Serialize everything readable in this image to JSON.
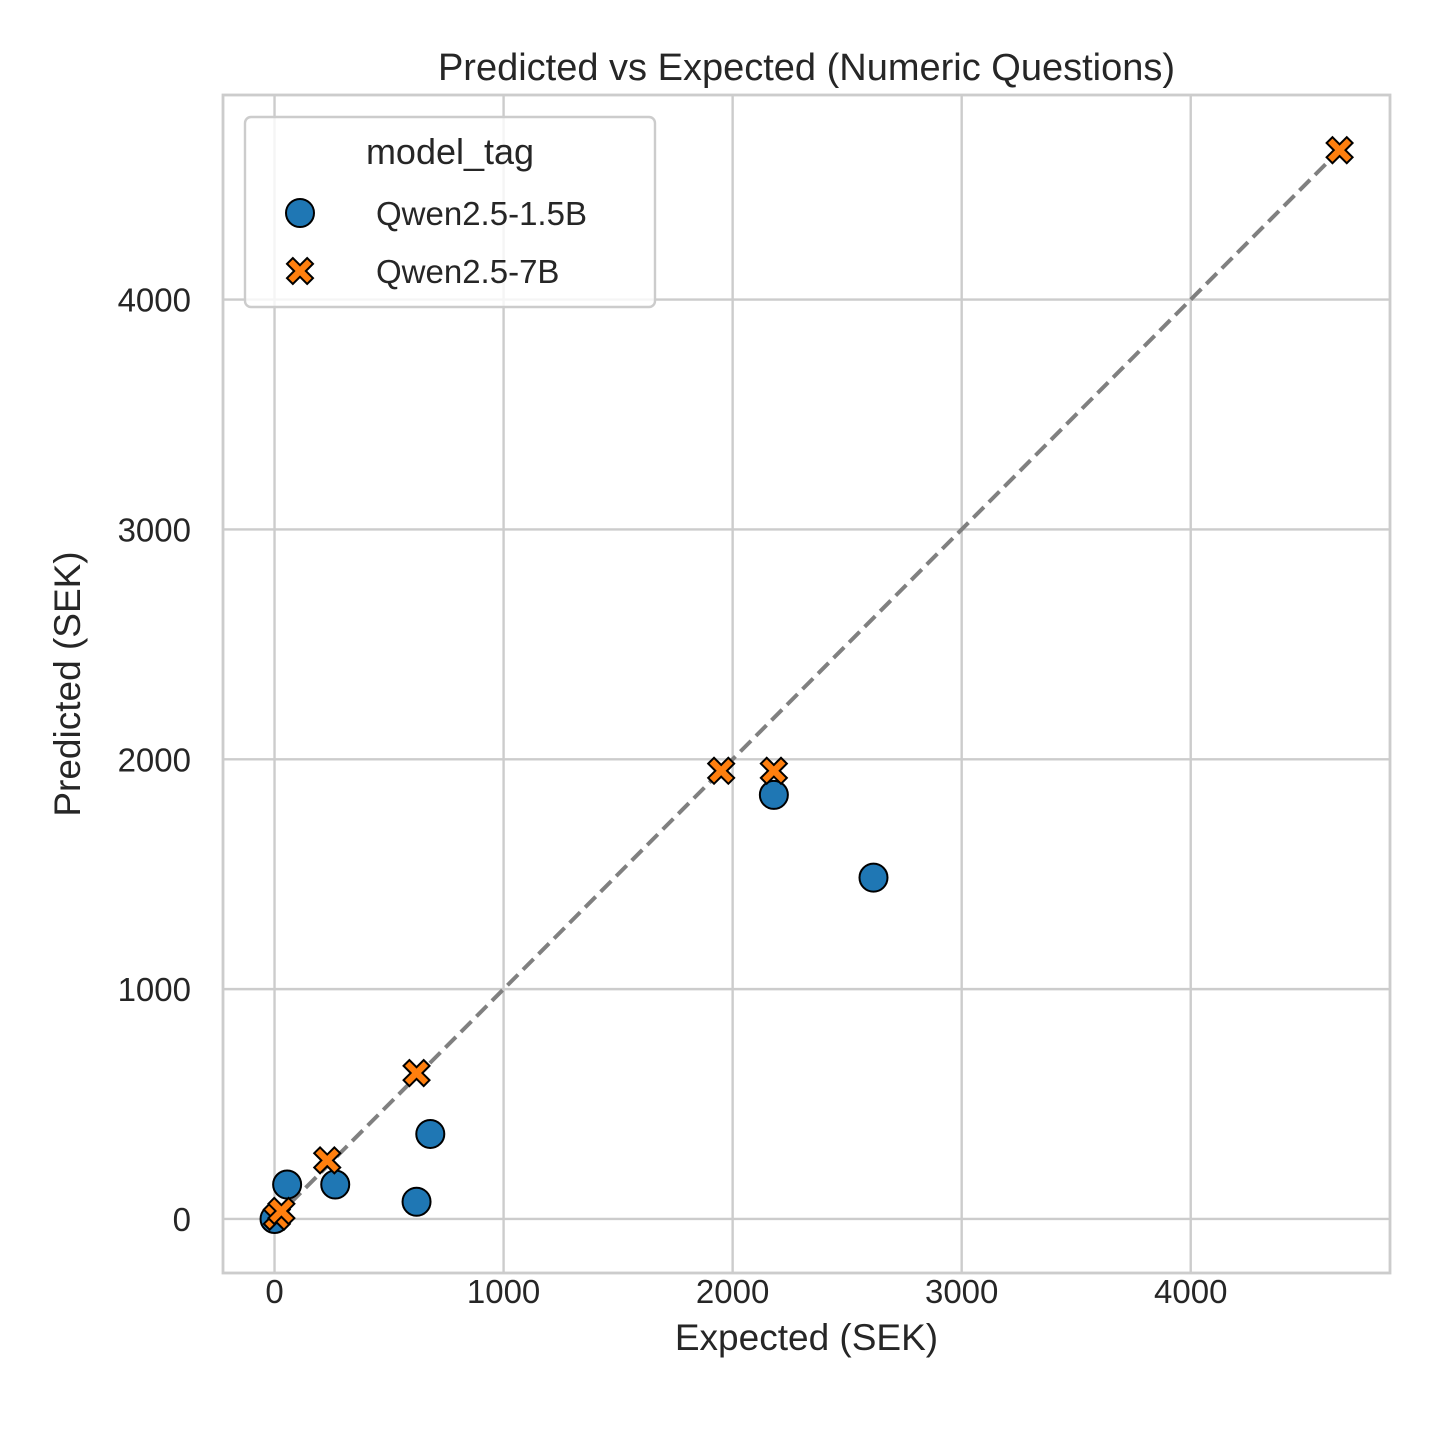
{
  "chart_data": {
    "type": "scatter",
    "title": "Predicted vs Expected (Numeric Questions)",
    "xlabel": "Expected (SEK)",
    "ylabel": "Predicted (SEK)",
    "xlim": [
      -225,
      4870
    ],
    "ylim": [
      -235,
      4890
    ],
    "xticks": [
      0,
      1000,
      2000,
      3000,
      4000
    ],
    "yticks": [
      0,
      1000,
      2000,
      3000,
      4000
    ],
    "x_tick_labels": [
      "0",
      "1000",
      "2000",
      "3000",
      "4000"
    ],
    "y_tick_labels": [
      "0",
      "1000",
      "2000",
      "3000",
      "4000"
    ],
    "grid": true,
    "legend": {
      "title": "model_tag",
      "placement": "top-left"
    },
    "reference_line": {
      "style": "dashed",
      "color": "#808080",
      "x": [
        0,
        4650
      ],
      "y": [
        0,
        4650
      ]
    },
    "series": [
      {
        "name": "Qwen2.5-1.5B",
        "marker": "circle",
        "color": "#1f77b4",
        "points": [
          {
            "x": 0,
            "y": 0
          },
          {
            "x": 55,
            "y": 150
          },
          {
            "x": 265,
            "y": 150
          },
          {
            "x": 620,
            "y": 75
          },
          {
            "x": 680,
            "y": 370
          },
          {
            "x": 2180,
            "y": 1845
          },
          {
            "x": 2615,
            "y": 1485
          }
        ]
      },
      {
        "name": "Qwen2.5-7B",
        "marker": "x",
        "color": "#ff7f0e",
        "points": [
          {
            "x": 10,
            "y": 10
          },
          {
            "x": 30,
            "y": 35
          },
          {
            "x": 230,
            "y": 255
          },
          {
            "x": 620,
            "y": 635
          },
          {
            "x": 1950,
            "y": 1950
          },
          {
            "x": 2180,
            "y": 1950
          },
          {
            "x": 4650,
            "y": 4650
          }
        ]
      }
    ]
  }
}
